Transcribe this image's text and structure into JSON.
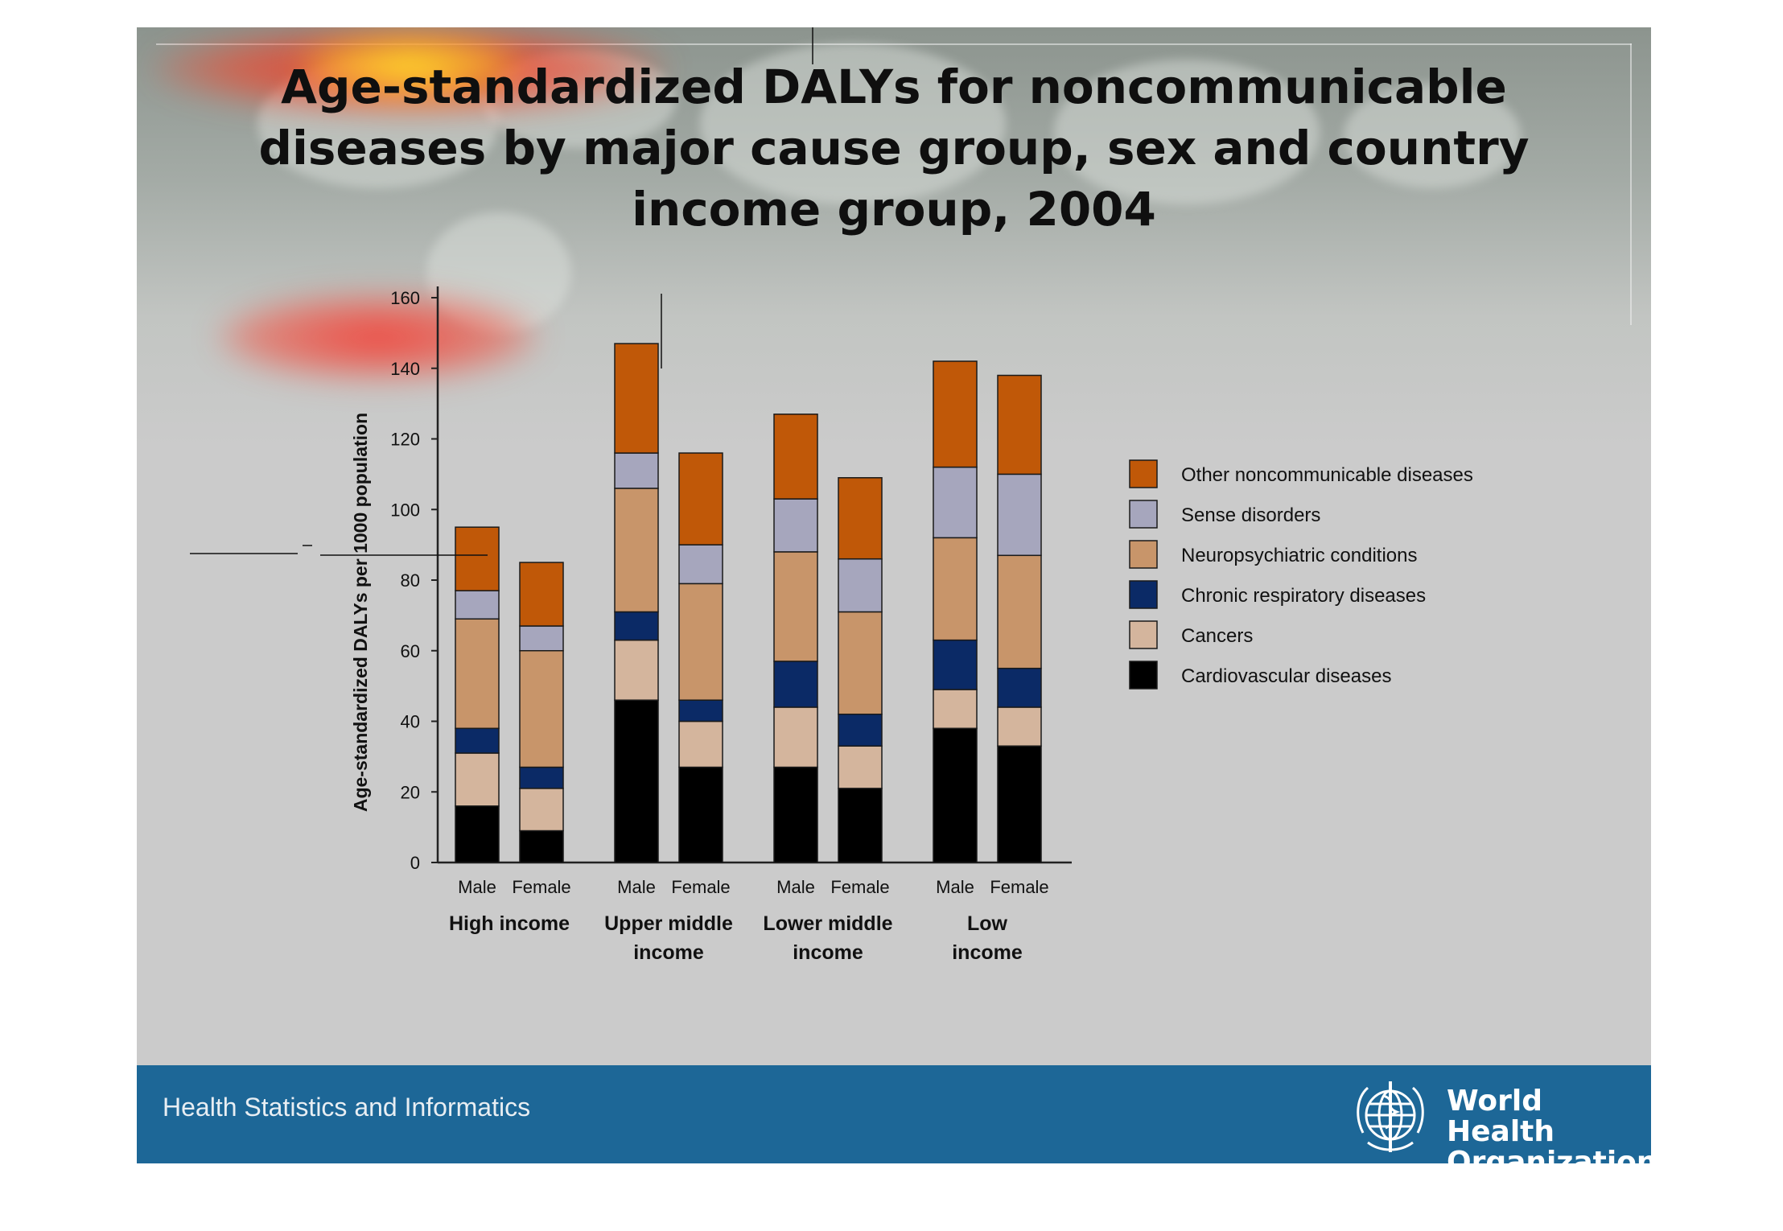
{
  "title_lines": [
    "Age-standardized DALYs for noncommunicable",
    "diseases by major cause group,  sex and country",
    "income group, 2004"
  ],
  "footer": {
    "label": "Health Statistics and Informatics",
    "org_line1": "World Health",
    "org_line2": "Organization"
  },
  "chart_data": {
    "type": "bar",
    "stacked": true,
    "ylabel": "Age-standardized DALYs per 1000 population",
    "xlabel": "",
    "ylim": [
      0,
      160
    ],
    "yticks": [
      0,
      20,
      40,
      60,
      80,
      100,
      120,
      140,
      160
    ],
    "grid": false,
    "legend_position": "right",
    "groups": [
      {
        "label_lines": [
          "High income"
        ],
        "categories": [
          "Male",
          "Female"
        ]
      },
      {
        "label_lines": [
          "Upper middle",
          "income"
        ],
        "categories": [
          "Male",
          "Female"
        ]
      },
      {
        "label_lines": [
          "Lower middle",
          "income"
        ],
        "categories": [
          "Male",
          "Female"
        ]
      },
      {
        "label_lines": [
          "Low",
          "income"
        ],
        "categories": [
          "Male",
          "Female"
        ]
      }
    ],
    "series": [
      {
        "name": "Cardiovascular diseases",
        "color": "#000000",
        "values": [
          16,
          9,
          46,
          27,
          27,
          21,
          38,
          33
        ]
      },
      {
        "name": "Cancers",
        "color": "#d4b59d",
        "values": [
          15,
          12,
          17,
          13,
          17,
          12,
          11,
          11
        ]
      },
      {
        "name": "Chronic respiratory diseases",
        "color": "#0b2a66",
        "values": [
          7,
          6,
          8,
          6,
          13,
          9,
          14,
          11
        ]
      },
      {
        "name": "Neuropsychiatric conditions",
        "color": "#c8956a",
        "values": [
          31,
          33,
          35,
          33,
          31,
          29,
          29,
          32
        ]
      },
      {
        "name": "Sense disorders",
        "color": "#a6a6bd",
        "values": [
          8,
          7,
          10,
          11,
          15,
          15,
          20,
          23
        ]
      },
      {
        "name": "Other noncommunicable diseases",
        "color": "#c05808",
        "values": [
          18,
          18,
          31,
          26,
          24,
          23,
          30,
          28
        ]
      }
    ]
  }
}
